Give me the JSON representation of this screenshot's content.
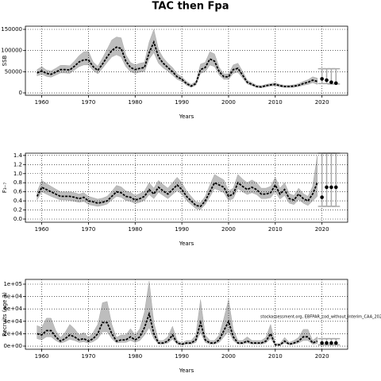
{
  "title": "TAC then Fpa",
  "chart_data": [
    {
      "type": "line",
      "ylabel": "SSB",
      "xlabel": "Years",
      "grid": true,
      "xlim": [
        1956.5,
        2025.5
      ],
      "xticks": [
        1960,
        1970,
        1980,
        1990,
        2000,
        2010,
        2020
      ],
      "ylim": [
        -5600,
        157500
      ],
      "yticks": [
        0,
        50000,
        100000,
        150000
      ],
      "x": [
        1959,
        1960,
        1961,
        1962,
        1963,
        1964,
        1965,
        1966,
        1967,
        1968,
        1969,
        1970,
        1971,
        1972,
        1973,
        1974,
        1975,
        1976,
        1977,
        1978,
        1979,
        1980,
        1981,
        1982,
        1983,
        1984,
        1985,
        1986,
        1987,
        1988,
        1989,
        1990,
        1991,
        1992,
        1993,
        1994,
        1995,
        1996,
        1997,
        1998,
        1999,
        2000,
        2001,
        2002,
        2003,
        2004,
        2005,
        2006,
        2007,
        2008,
        2009,
        2010,
        2011,
        2012,
        2013,
        2014,
        2015,
        2016,
        2017,
        2018,
        2019
      ],
      "values": [
        47000,
        52000,
        46000,
        44000,
        49000,
        55000,
        55000,
        54000,
        63000,
        73000,
        78000,
        78000,
        62000,
        53000,
        68000,
        85000,
        100000,
        108000,
        105000,
        75000,
        60000,
        55000,
        58000,
        60000,
        95000,
        120000,
        85000,
        70000,
        60000,
        50000,
        38000,
        32000,
        22000,
        16000,
        22000,
        55000,
        60000,
        80000,
        75000,
        50000,
        38000,
        38000,
        55000,
        58000,
        42000,
        25000,
        20000,
        15000,
        14000,
        17000,
        19000,
        20000,
        17000,
        15000,
        15000,
        16000,
        18000,
        22000,
        25000,
        30000,
        27000
      ],
      "lower": [
        40000,
        44000,
        39000,
        37000,
        42000,
        47000,
        47000,
        46000,
        54000,
        62000,
        66000,
        66000,
        53000,
        45000,
        58000,
        72000,
        85000,
        90000,
        85000,
        62000,
        50000,
        46000,
        49000,
        50000,
        80000,
        95000,
        70000,
        59000,
        51000,
        42000,
        32000,
        27000,
        18000,
        13000,
        18000,
        46000,
        50000,
        66000,
        62000,
        42000,
        32000,
        32000,
        46000,
        49000,
        35000,
        21000,
        17000,
        13000,
        12000,
        14000,
        16000,
        17000,
        14000,
        13000,
        13000,
        13000,
        15000,
        18000,
        20000,
        24000,
        20000
      ],
      "upper": [
        55000,
        62000,
        54000,
        52000,
        58000,
        65000,
        65000,
        64000,
        75000,
        88000,
        97000,
        98000,
        73000,
        63000,
        82000,
        103000,
        125000,
        132000,
        130000,
        90000,
        72000,
        66000,
        70000,
        72000,
        120000,
        150000,
        102000,
        83000,
        70000,
        60000,
        45000,
        38000,
        27000,
        20000,
        27000,
        68000,
        72000,
        97000,
        92000,
        60000,
        45000,
        45000,
        66000,
        70000,
        51000,
        30000,
        24000,
        18000,
        17000,
        20000,
        22000,
        24000,
        20000,
        18000,
        18000,
        19000,
        22000,
        27000,
        31000,
        38000,
        35000
      ],
      "forecast_x": [
        2020,
        2021,
        2022,
        2023
      ],
      "forecast_values": [
        33000,
        30000,
        25000,
        23000
      ],
      "forecast_lower": [
        22000,
        22000,
        21000,
        21000
      ],
      "forecast_upper": [
        57000,
        57000,
        57000,
        57000
      ]
    },
    {
      "type": "line",
      "ylabel": "F₃₋₇",
      "xlabel": "Years",
      "grid": true,
      "xlim": [
        1956.5,
        2025.5
      ],
      "xticks": [
        1960,
        1970,
        1980,
        1990,
        2000,
        2010,
        2020
      ],
      "ylim": [
        -0.07,
        1.45
      ],
      "yticks": [
        {
          "value": 0,
          "label": "0.0"
        },
        0.2,
        0.4,
        0.6,
        0.8,
        {
          "value": 1,
          "label": "1.0"
        },
        1.2,
        1.4
      ],
      "x": [
        1959,
        1960,
        1961,
        1962,
        1963,
        1964,
        1965,
        1966,
        1967,
        1968,
        1969,
        1970,
        1971,
        1972,
        1973,
        1974,
        1975,
        1976,
        1977,
        1978,
        1979,
        1980,
        1981,
        1982,
        1983,
        1984,
        1985,
        1986,
        1987,
        1988,
        1989,
        1990,
        1991,
        1992,
        1993,
        1994,
        1995,
        1996,
        1997,
        1998,
        1999,
        2000,
        2001,
        2002,
        2003,
        2004,
        2005,
        2006,
        2007,
        2008,
        2009,
        2010,
        2011,
        2012,
        2013,
        2014,
        2015,
        2016,
        2017,
        2018,
        2019
      ],
      "values": [
        0.5,
        0.7,
        0.65,
        0.6,
        0.55,
        0.5,
        0.5,
        0.5,
        0.48,
        0.45,
        0.48,
        0.4,
        0.38,
        0.35,
        0.37,
        0.4,
        0.5,
        0.6,
        0.58,
        0.5,
        0.48,
        0.42,
        0.45,
        0.5,
        0.65,
        0.55,
        0.7,
        0.62,
        0.55,
        0.65,
        0.75,
        0.65,
        0.5,
        0.4,
        0.3,
        0.28,
        0.4,
        0.6,
        0.8,
        0.75,
        0.7,
        0.5,
        0.55,
        0.8,
        0.72,
        0.65,
        0.7,
        0.65,
        0.55,
        0.55,
        0.58,
        0.75,
        0.55,
        0.65,
        0.45,
        0.42,
        0.55,
        0.45,
        0.4,
        0.55,
        0.8
      ],
      "lower": [
        0.42,
        0.6,
        0.55,
        0.5,
        0.46,
        0.42,
        0.42,
        0.41,
        0.39,
        0.37,
        0.39,
        0.32,
        0.3,
        0.28,
        0.3,
        0.33,
        0.42,
        0.5,
        0.48,
        0.41,
        0.39,
        0.34,
        0.37,
        0.41,
        0.54,
        0.45,
        0.59,
        0.52,
        0.45,
        0.54,
        0.63,
        0.54,
        0.41,
        0.32,
        0.23,
        0.21,
        0.32,
        0.49,
        0.67,
        0.63,
        0.58,
        0.41,
        0.45,
        0.67,
        0.6,
        0.54,
        0.58,
        0.54,
        0.45,
        0.45,
        0.47,
        0.6,
        0.44,
        0.52,
        0.35,
        0.32,
        0.43,
        0.35,
        0.3,
        0.4,
        0.5
      ],
      "upper": [
        0.6,
        0.85,
        0.78,
        0.72,
        0.66,
        0.6,
        0.6,
        0.6,
        0.58,
        0.55,
        0.58,
        0.5,
        0.47,
        0.44,
        0.46,
        0.5,
        0.61,
        0.74,
        0.71,
        0.62,
        0.59,
        0.52,
        0.56,
        0.62,
        0.8,
        0.68,
        0.85,
        0.76,
        0.68,
        0.8,
        0.92,
        0.8,
        0.62,
        0.5,
        0.38,
        0.36,
        0.5,
        0.75,
        0.98,
        0.92,
        0.86,
        0.62,
        0.68,
        0.98,
        0.88,
        0.8,
        0.86,
        0.8,
        0.68,
        0.68,
        0.72,
        0.92,
        0.68,
        0.8,
        0.56,
        0.52,
        0.68,
        0.56,
        0.5,
        0.72,
        1.4
      ],
      "forecast_x": [
        2020,
        2021,
        2022,
        2023
      ],
      "forecast_values": [
        0.48,
        0.7,
        0.7,
        0.7
      ],
      "forecast_lower": [
        0.28,
        0.28,
        0.28,
        0.28
      ],
      "forecast_upper": [
        1.45,
        1.45,
        1.45,
        1.45
      ]
    },
    {
      "type": "line",
      "ylabel": "Recruits (age 3)",
      "xlabel": "Years",
      "grid": true,
      "annotation": "stockassessment.org, EBFPAR_cod_without_interim_CAA_202",
      "xlim": [
        1956.5,
        2025.5
      ],
      "xticks": [
        1960,
        1970,
        1980,
        1990,
        2000,
        2010,
        2020
      ],
      "ylim": [
        -5100,
        107700
      ],
      "yticks": [
        {
          "value": 0,
          "label": "0e+00"
        },
        {
          "value": 20000,
          "label": "2e+04"
        },
        {
          "value": 40000,
          "label": "4e+04"
        },
        {
          "value": 60000,
          "label": "6e+04"
        },
        {
          "value": 80000,
          "label": "8e+04"
        },
        {
          "value": 100000,
          "label": "1e+05"
        }
      ],
      "x": [
        1959,
        1960,
        1961,
        1962,
        1963,
        1964,
        1965,
        1966,
        1967,
        1968,
        1969,
        1970,
        1971,
        1972,
        1973,
        1974,
        1975,
        1976,
        1977,
        1978,
        1979,
        1980,
        1981,
        1982,
        1983,
        1984,
        1985,
        1986,
        1987,
        1988,
        1989,
        1990,
        1991,
        1992,
        1993,
        1994,
        1995,
        1996,
        1997,
        1998,
        1999,
        2000,
        2001,
        2002,
        2003,
        2004,
        2005,
        2006,
        2007,
        2008,
        2009,
        2010,
        2011,
        2012,
        2013,
        2014,
        2015,
        2016,
        2017,
        2018,
        2019
      ],
      "values": [
        20000,
        18000,
        25000,
        25000,
        15000,
        8000,
        12000,
        18000,
        15000,
        10000,
        12000,
        8000,
        12000,
        20000,
        38000,
        38000,
        20000,
        8000,
        10000,
        10000,
        15000,
        10000,
        15000,
        30000,
        52000,
        20000,
        5000,
        5000,
        8000,
        18000,
        5000,
        3000,
        5000,
        5000,
        10000,
        38000,
        10000,
        5000,
        5000,
        10000,
        25000,
        40000,
        15000,
        5000,
        5000,
        8000,
        5000,
        5000,
        5000,
        8000,
        20000,
        2000,
        2000,
        8000,
        3000,
        5000,
        8000,
        15000,
        15000,
        5000,
        8000
      ],
      "lower": [
        12000,
        10000,
        15000,
        15000,
        9000,
        5000,
        7000,
        11000,
        9000,
        6000,
        7000,
        5000,
        7000,
        12000,
        23000,
        23000,
        12000,
        5000,
        6000,
        6000,
        9000,
        6000,
        9000,
        18000,
        30000,
        12000,
        3000,
        3000,
        5000,
        11000,
        3000,
        2000,
        3000,
        3000,
        6000,
        22000,
        6000,
        3000,
        3000,
        6000,
        15000,
        24000,
        9000,
        3000,
        3000,
        5000,
        3000,
        3000,
        3000,
        5000,
        12000,
        1000,
        1000,
        5000,
        2000,
        3000,
        5000,
        9000,
        9000,
        3000,
        4000
      ],
      "upper": [
        33000,
        30000,
        45000,
        45000,
        25000,
        14000,
        22000,
        35000,
        28000,
        18000,
        22000,
        14000,
        22000,
        35000,
        70000,
        72000,
        35000,
        14000,
        18000,
        18000,
        28000,
        18000,
        28000,
        55000,
        105000,
        38000,
        9000,
        9000,
        15000,
        32000,
        9000,
        5000,
        9000,
        9000,
        18000,
        75000,
        18000,
        9000,
        9000,
        18000,
        45000,
        75000,
        27000,
        9000,
        9000,
        15000,
        9000,
        9000,
        9000,
        14000,
        35000,
        4000,
        4000,
        14000,
        6000,
        9000,
        14000,
        27000,
        27000,
        9000,
        15000
      ],
      "forecast_x": [
        2020,
        2021,
        2022,
        2023
      ],
      "forecast_values": [
        5000,
        5000,
        5000,
        5000
      ],
      "forecast_lower": [
        2000,
        2000,
        2000,
        2000
      ],
      "forecast_upper": [
        12000,
        12000,
        12000,
        12000
      ]
    }
  ]
}
